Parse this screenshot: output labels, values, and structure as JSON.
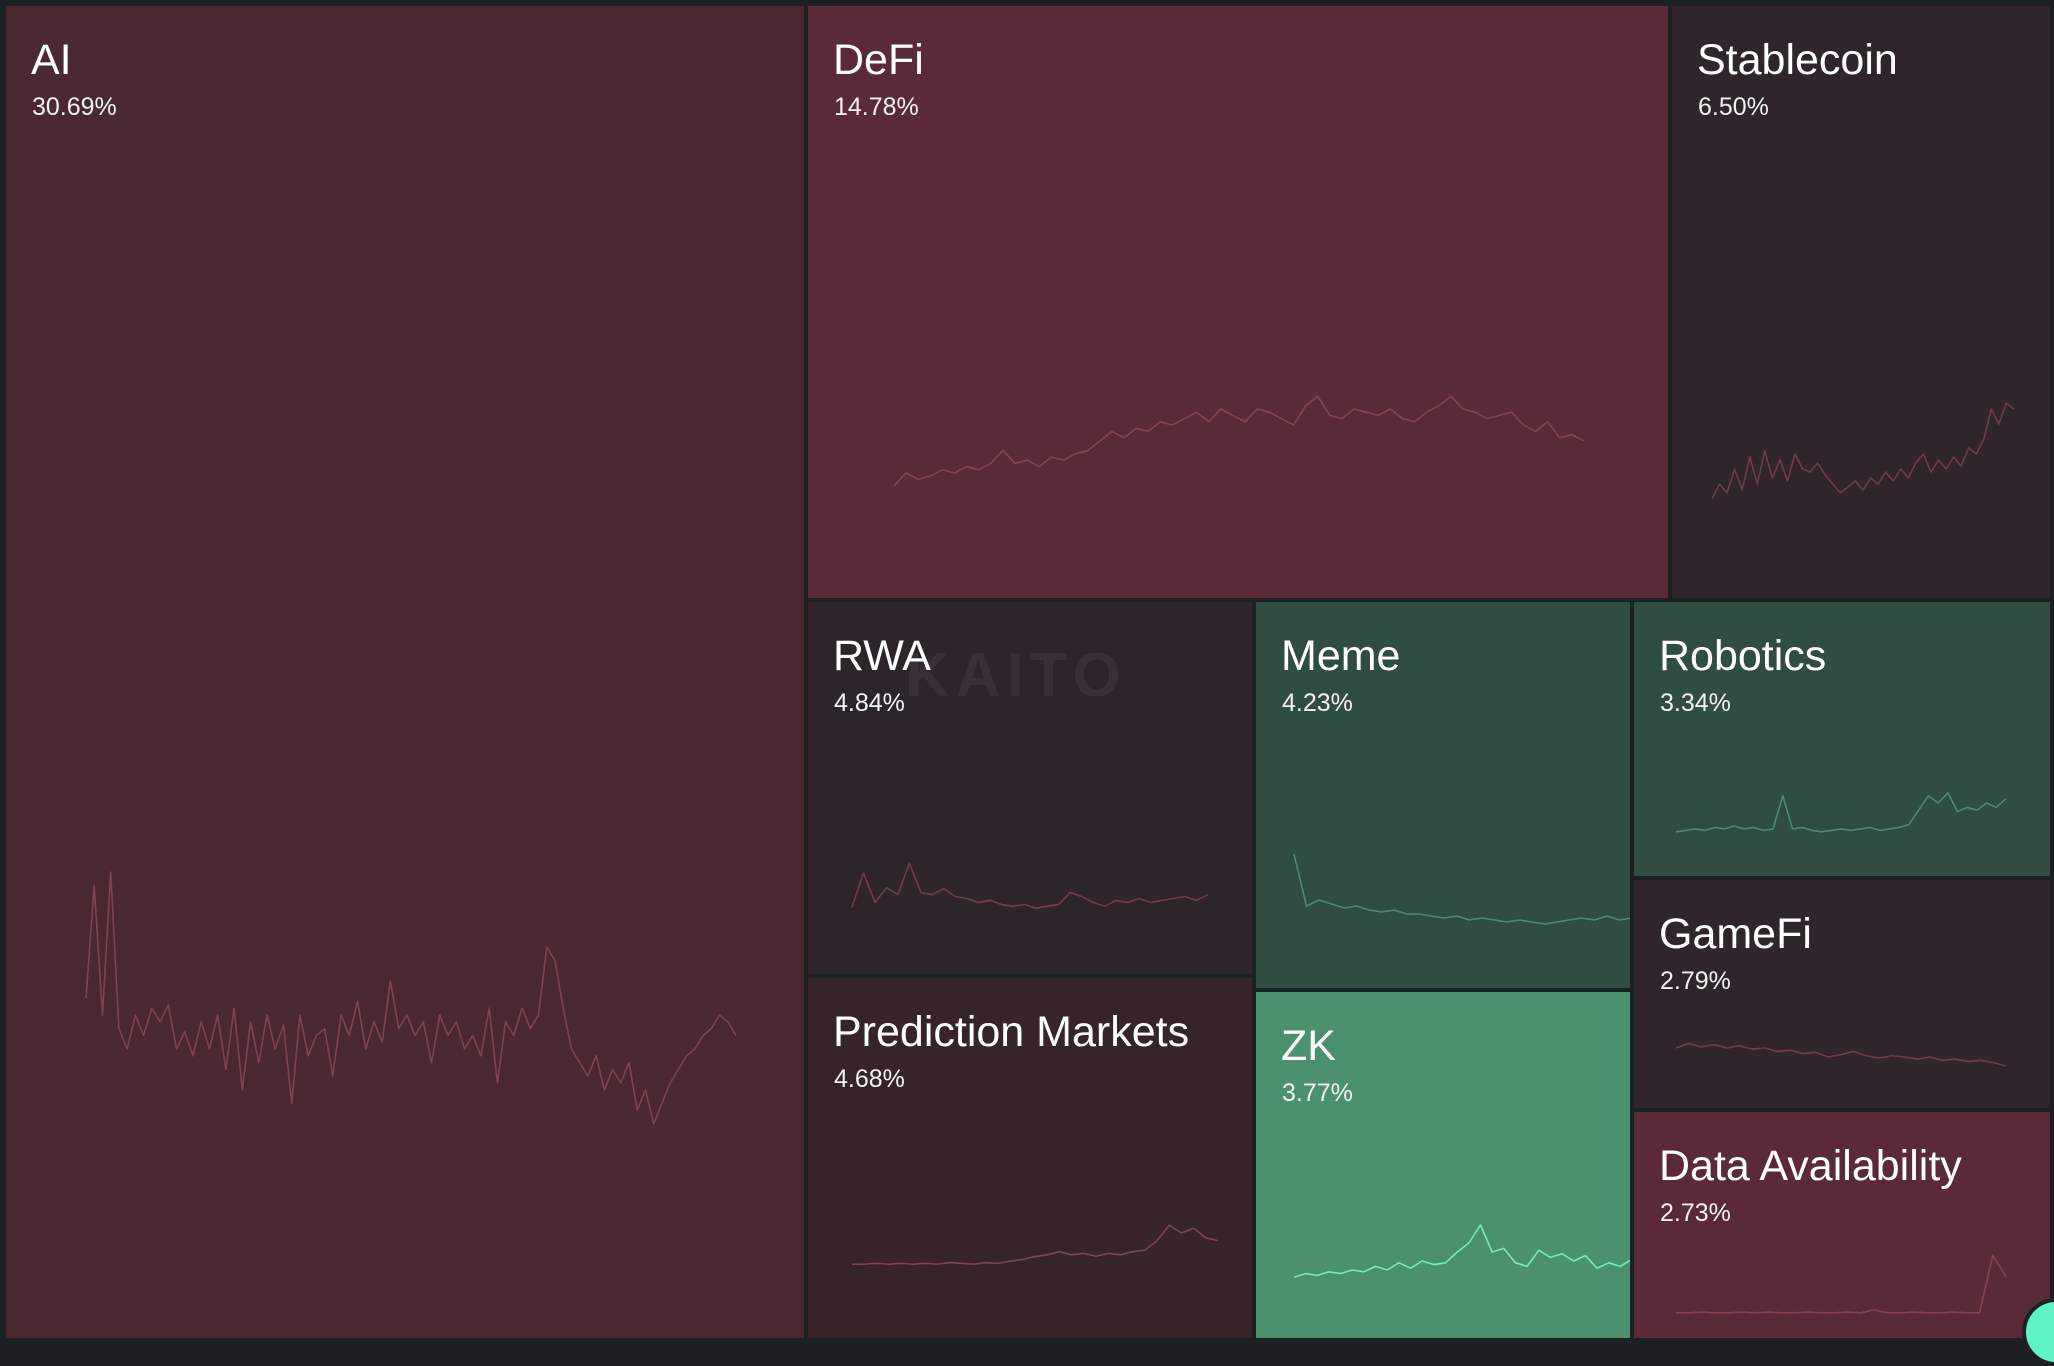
{
  "watermark": "KAITO",
  "chart_data": {
    "type": "treemap",
    "title": "",
    "tiles": [
      {
        "name": "AI",
        "share": "30.69%",
        "trend": "down",
        "color": "#4a2830",
        "line": "#7d4550",
        "spark": [
          0.55,
          0.22,
          0.6,
          0.18,
          0.64,
          0.7,
          0.6,
          0.66,
          0.58,
          0.62,
          0.57,
          0.7,
          0.65,
          0.72,
          0.62,
          0.7,
          0.6,
          0.76,
          0.58,
          0.82,
          0.62,
          0.74,
          0.6,
          0.7,
          0.63,
          0.86,
          0.6,
          0.72,
          0.66,
          0.64,
          0.78,
          0.6,
          0.66,
          0.56,
          0.7,
          0.62,
          0.68,
          0.5,
          0.64,
          0.6,
          0.66,
          0.62,
          0.74,
          0.6,
          0.66,
          0.62,
          0.7,
          0.66,
          0.72,
          0.58,
          0.8,
          0.62,
          0.66,
          0.58,
          0.64,
          0.6,
          0.4,
          0.44,
          0.58,
          0.7,
          0.74,
          0.78,
          0.72,
          0.82,
          0.76,
          0.8,
          0.74,
          0.88,
          0.82,
          0.92,
          0.86,
          0.8,
          0.76,
          0.72,
          0.7,
          0.66,
          0.64,
          0.6,
          0.62,
          0.66
        ]
      },
      {
        "name": "DeFi",
        "share": "14.78%",
        "trend": "down",
        "color": "#5a2b36",
        "line": "#874452",
        "spark": [
          0.78,
          0.7,
          0.74,
          0.72,
          0.68,
          0.7,
          0.66,
          0.68,
          0.64,
          0.56,
          0.64,
          0.62,
          0.66,
          0.6,
          0.62,
          0.58,
          0.56,
          0.5,
          0.44,
          0.48,
          0.42,
          0.44,
          0.38,
          0.4,
          0.36,
          0.32,
          0.38,
          0.3,
          0.34,
          0.38,
          0.3,
          0.32,
          0.36,
          0.4,
          0.28,
          0.22,
          0.34,
          0.36,
          0.3,
          0.32,
          0.34,
          0.3,
          0.36,
          0.38,
          0.32,
          0.28,
          0.22,
          0.3,
          0.32,
          0.36,
          0.34,
          0.32,
          0.4,
          0.44,
          0.38,
          0.48,
          0.46,
          0.5
        ]
      },
      {
        "name": "Stablecoin",
        "share": "6.50%",
        "trend": "down",
        "color": "#2f252b",
        "line": "#6e3e48",
        "spark": [
          0.9,
          0.8,
          0.86,
          0.7,
          0.84,
          0.62,
          0.8,
          0.58,
          0.76,
          0.64,
          0.78,
          0.6,
          0.7,
          0.72,
          0.66,
          0.74,
          0.8,
          0.86,
          0.82,
          0.78,
          0.84,
          0.76,
          0.8,
          0.72,
          0.78,
          0.7,
          0.76,
          0.66,
          0.6,
          0.72,
          0.64,
          0.7,
          0.62,
          0.68,
          0.56,
          0.6,
          0.5,
          0.3,
          0.4,
          0.26,
          0.3
        ]
      },
      {
        "name": "RWA",
        "share": "4.84%",
        "trend": "down",
        "color": "#2e252b",
        "line": "#6e3e48",
        "spark": [
          0.85,
          0.5,
          0.8,
          0.65,
          0.72,
          0.4,
          0.7,
          0.72,
          0.66,
          0.74,
          0.76,
          0.8,
          0.78,
          0.82,
          0.84,
          0.82,
          0.86,
          0.84,
          0.82,
          0.7,
          0.74,
          0.8,
          0.84,
          0.78,
          0.8,
          0.76,
          0.8,
          0.78,
          0.76,
          0.74,
          0.78,
          0.72
        ]
      },
      {
        "name": "Meme",
        "share": "4.23%",
        "trend": "up",
        "color": "#2f4d41",
        "line": "#4e8a6e",
        "spark": [
          0.2,
          0.72,
          0.66,
          0.7,
          0.74,
          0.72,
          0.76,
          0.78,
          0.76,
          0.8,
          0.8,
          0.82,
          0.84,
          0.82,
          0.86,
          0.84,
          0.86,
          0.88,
          0.86,
          0.88,
          0.9,
          0.88,
          0.86,
          0.84,
          0.86,
          0.82,
          0.86,
          0.84
        ]
      },
      {
        "name": "Robotics",
        "share": "3.34%",
        "trend": "up",
        "color": "#2f4d41",
        "line": "#4e8a6e",
        "spark": [
          0.9,
          0.88,
          0.86,
          0.88,
          0.84,
          0.86,
          0.82,
          0.86,
          0.84,
          0.88,
          0.86,
          0.4,
          0.86,
          0.84,
          0.88,
          0.9,
          0.88,
          0.86,
          0.88,
          0.86,
          0.84,
          0.88,
          0.86,
          0.84,
          0.8,
          0.6,
          0.4,
          0.5,
          0.36,
          0.62,
          0.56,
          0.6,
          0.5,
          0.56,
          0.44
        ]
      },
      {
        "name": "GameFi",
        "share": "2.79%",
        "trend": "down",
        "color": "#2f252b",
        "line": "#6e3e48",
        "spark": [
          0.5,
          0.42,
          0.48,
          0.44,
          0.5,
          0.46,
          0.52,
          0.5,
          0.56,
          0.54,
          0.6,
          0.58,
          0.66,
          0.62,
          0.56,
          0.64,
          0.68,
          0.64,
          0.66,
          0.7,
          0.66,
          0.72,
          0.7,
          0.74,
          0.72,
          0.76,
          0.82
        ]
      },
      {
        "name": "Prediction Markets",
        "share": "4.68%",
        "trend": "down",
        "color": "#362429",
        "line": "#7d4550",
        "spark": [
          0.9,
          0.9,
          0.89,
          0.9,
          0.89,
          0.9,
          0.89,
          0.9,
          0.88,
          0.89,
          0.9,
          0.88,
          0.89,
          0.86,
          0.84,
          0.8,
          0.78,
          0.74,
          0.78,
          0.76,
          0.8,
          0.76,
          0.78,
          0.74,
          0.72,
          0.6,
          0.4,
          0.5,
          0.44,
          0.56,
          0.6
        ]
      },
      {
        "name": "ZK",
        "share": "3.77%",
        "trend": "up",
        "color": "#4b916e",
        "line": "#7ee8b8",
        "spark": [
          0.88,
          0.84,
          0.86,
          0.82,
          0.84,
          0.8,
          0.82,
          0.76,
          0.8,
          0.72,
          0.78,
          0.7,
          0.74,
          0.72,
          0.6,
          0.5,
          0.3,
          0.6,
          0.56,
          0.72,
          0.76,
          0.58,
          0.66,
          0.62,
          0.7,
          0.64,
          0.78,
          0.72,
          0.76,
          0.68
        ]
      },
      {
        "name": "Data Availability",
        "share": "2.73%",
        "trend": "down",
        "color": "#5a2b36",
        "line": "#874452",
        "spark": [
          0.9,
          0.9,
          0.89,
          0.9,
          0.9,
          0.89,
          0.9,
          0.89,
          0.9,
          0.9,
          0.89,
          0.9,
          0.9,
          0.89,
          0.9,
          0.86,
          0.9,
          0.9,
          0.89,
          0.9,
          0.9,
          0.89,
          0.9,
          0.9,
          0.1,
          0.4
        ]
      }
    ]
  }
}
